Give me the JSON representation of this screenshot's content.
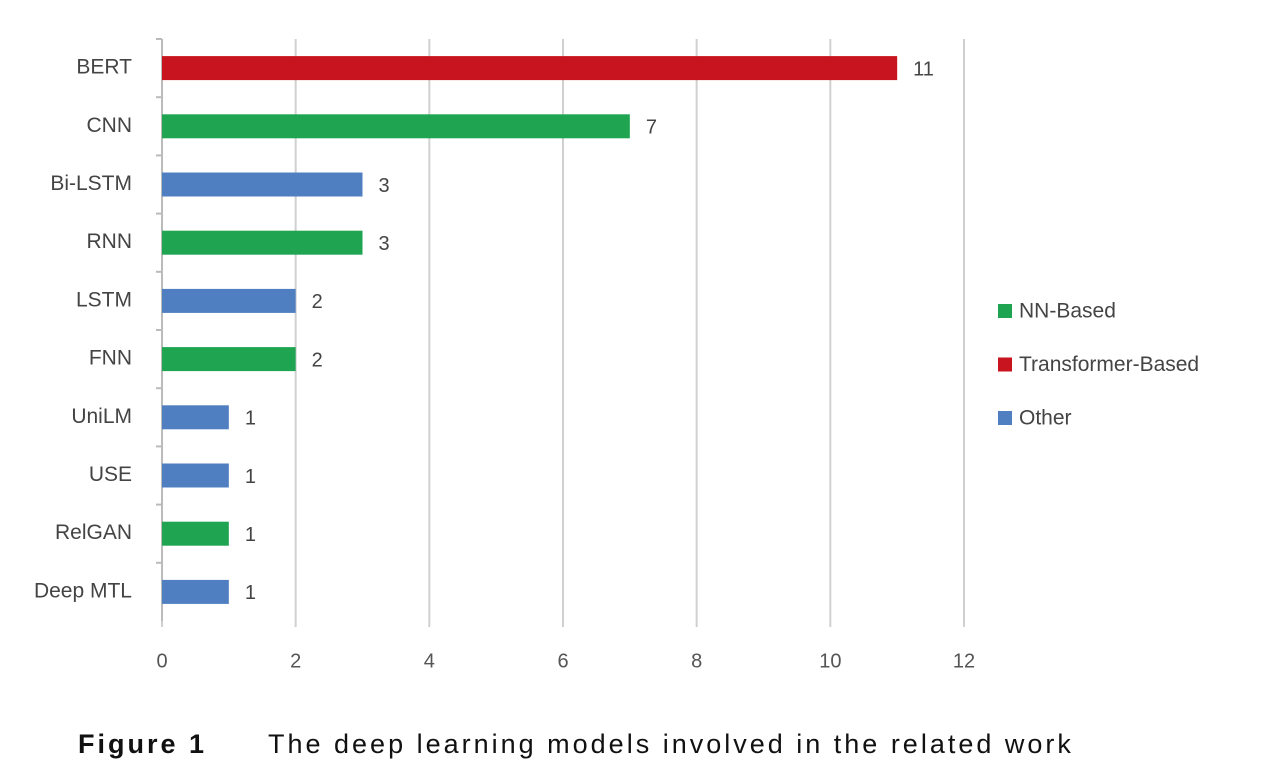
{
  "chart_data": {
    "type": "bar",
    "orientation": "horizontal",
    "categories": [
      "BERT",
      "CNN",
      "Bi-LSTM",
      "RNN",
      "LSTM",
      "FNN",
      "UniLM",
      "USE",
      "RelGAN",
      "Deep MTL"
    ],
    "series": [
      {
        "name": "NN-Based",
        "color": "#1fa552",
        "values": [
          null,
          7,
          null,
          3,
          null,
          2,
          null,
          null,
          1,
          null
        ]
      },
      {
        "name": "Transformer-Based",
        "color": "#c8141e",
        "values": [
          11,
          null,
          null,
          null,
          null,
          null,
          null,
          null,
          null,
          null
        ]
      },
      {
        "name": "Other",
        "color": "#4f7fc0",
        "values": [
          null,
          null,
          3,
          null,
          2,
          null,
          1,
          1,
          null,
          1
        ]
      }
    ],
    "xlim": [
      0,
      12
    ],
    "xticks": [
      0,
      2,
      4,
      6,
      8,
      10,
      12
    ],
    "grid": true,
    "legend": "right",
    "figure_label": "Figure 1",
    "caption": "The deep learning models involved in the related work"
  }
}
